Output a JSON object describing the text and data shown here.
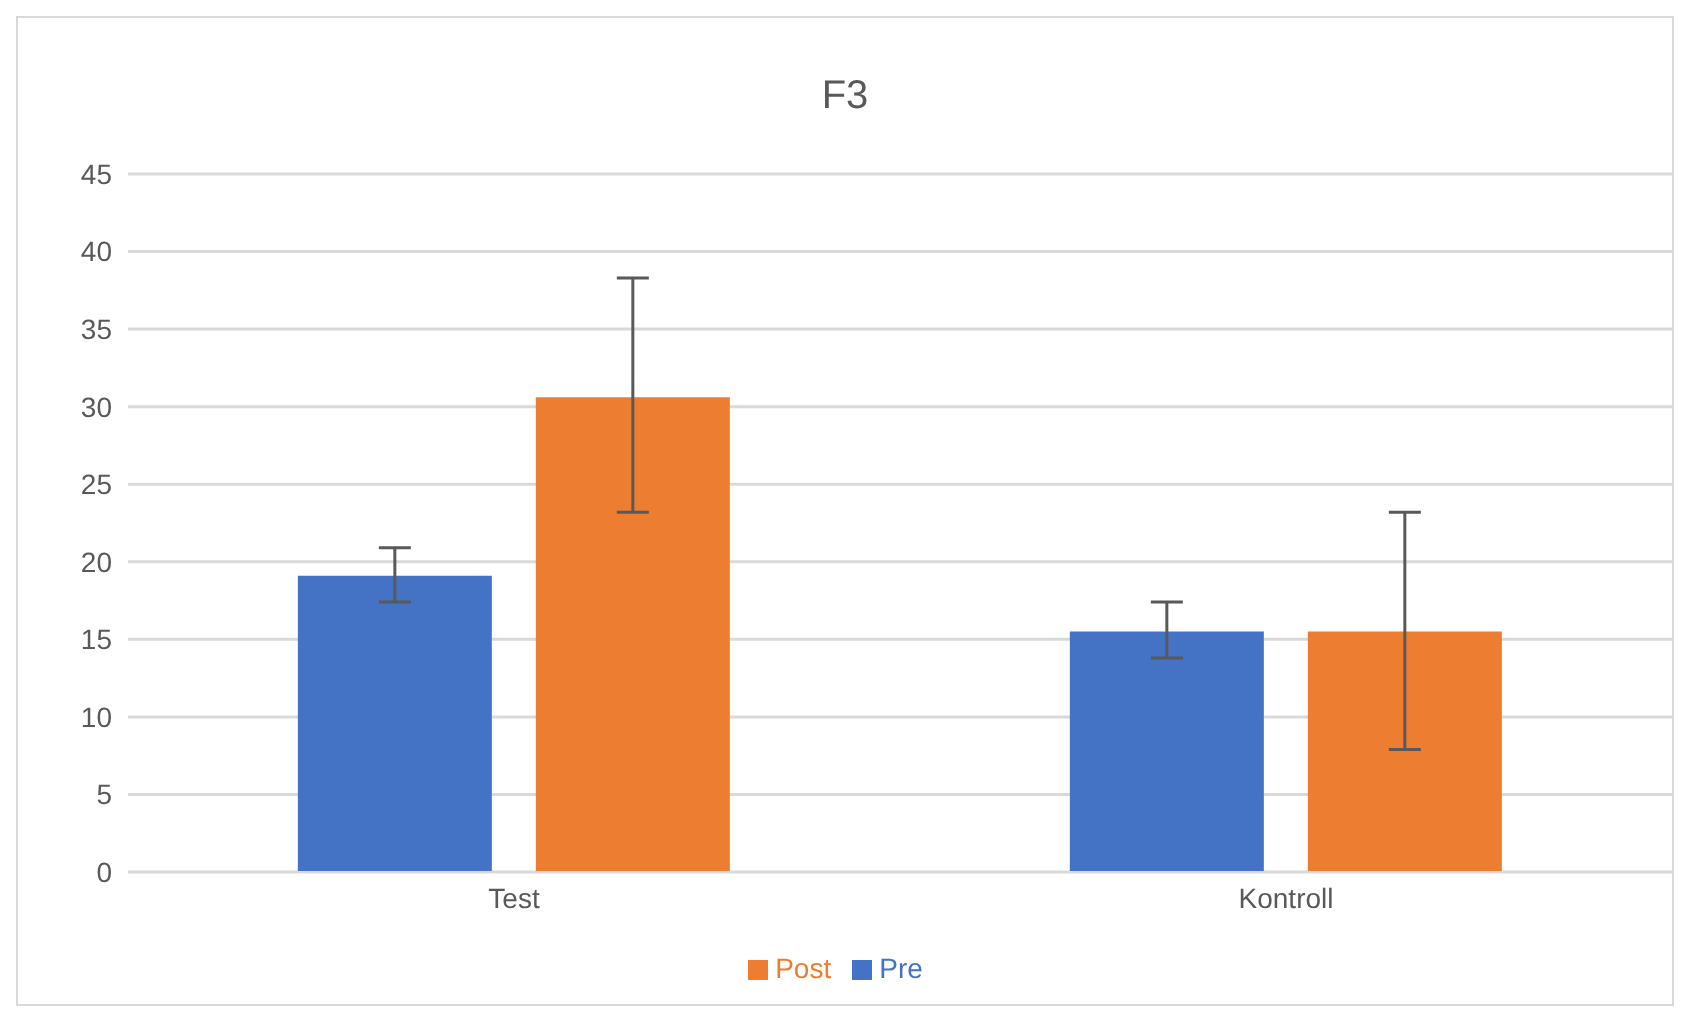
{
  "chart_data": {
    "type": "bar",
    "title": "F3",
    "categories": [
      "Test",
      "Kontroll"
    ],
    "series": [
      {
        "name": "Pre",
        "color": "#4472c4",
        "values": [
          19.1,
          15.5
        ],
        "errors": [
          [
            17.4,
            20.9
          ],
          [
            13.8,
            17.4
          ]
        ]
      },
      {
        "name": "Post",
        "color": "#ed7d31",
        "values": [
          30.6,
          15.5
        ],
        "errors": [
          [
            23.2,
            38.3
          ],
          [
            7.9,
            23.2
          ]
        ]
      }
    ],
    "ylim": [
      0,
      45
    ],
    "yticks": [
      0,
      5,
      10,
      15,
      20,
      25,
      30,
      35,
      40,
      45
    ],
    "grid": "y",
    "legend": "bottom"
  }
}
